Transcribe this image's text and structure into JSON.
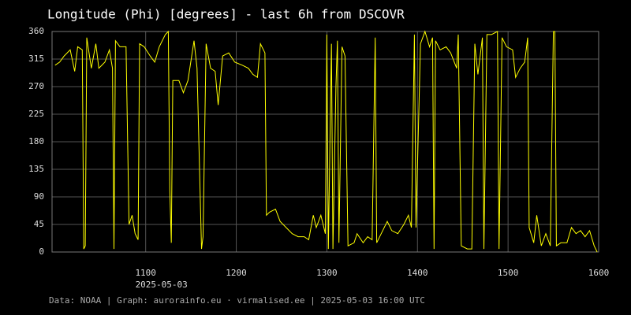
{
  "chart_data": {
    "type": "line",
    "title": "Longitude (Phi) [degrees] - last 6h from DSCOVR",
    "footer": "Data: NOAA | Graph: aurorainfo.eu · virmalised.ee | 2025-05-03 16:00 UTC",
    "x_date": "2025-05-03",
    "xlim": [
      "09:58",
      "16:00"
    ],
    "xticks": [
      {
        "value": "11:00",
        "label": "1100"
      },
      {
        "value": "12:00",
        "label": "1200"
      },
      {
        "value": "13:00",
        "label": "1300"
      },
      {
        "value": "14:00",
        "label": "1400"
      },
      {
        "value": "15:00",
        "label": "1500"
      },
      {
        "value": "16:00",
        "label": "1600"
      }
    ],
    "ylim": [
      0,
      360
    ],
    "yticks": [
      0,
      45,
      90,
      135,
      180,
      225,
      270,
      315,
      360
    ],
    "grid": true,
    "color": "#ffff00",
    "x": [
      "10:00",
      "10:03",
      "10:06",
      "10:10",
      "10:13",
      "10:15",
      "10:18",
      "10:19",
      "10:20",
      "10:21",
      "10:24",
      "10:27",
      "10:29",
      "10:33",
      "10:36",
      "10:38",
      "10:39",
      "10:40",
      "10:43",
      "10:47",
      "10:49",
      "10:51",
      "10:53",
      "10:55",
      "10:56",
      "10:59",
      "11:03",
      "11:06",
      "11:09",
      "11:13",
      "11:15",
      "11:16",
      "11:17",
      "11:18",
      "11:22",
      "11:25",
      "11:28",
      "11:32",
      "11:34",
      "11:37",
      "11:38",
      "11:40",
      "11:43",
      "11:46",
      "11:48",
      "11:51",
      "11:55",
      "11:59",
      "12:04",
      "12:08",
      "12:11",
      "12:14",
      "12:16",
      "12:19",
      "12:20",
      "12:22",
      "12:26",
      "12:29",
      "12:33",
      "12:37",
      "12:41",
      "12:45",
      "12:48",
      "12:51",
      "12:53",
      "12:56",
      "12:59",
      "13:00",
      "13:01",
      "13:03",
      "13:04",
      "13:06",
      "13:07",
      "13:08",
      "13:10",
      "13:12",
      "13:14",
      "13:18",
      "13:20",
      "13:24",
      "13:27",
      "13:30",
      "13:32",
      "13:33",
      "13:36",
      "13:40",
      "13:43",
      "13:47",
      "13:51",
      "13:54",
      "13:56",
      "13:58",
      "13:59",
      "14:02",
      "14:05",
      "14:08",
      "14:10",
      "14:11",
      "14:12",
      "14:15",
      "14:19",
      "14:22",
      "14:26",
      "14:27",
      "14:29",
      "14:33",
      "14:36",
      "14:38",
      "14:40",
      "14:43",
      "14:44",
      "14:46",
      "14:49",
      "14:53",
      "14:54",
      "14:56",
      "14:59",
      "15:03",
      "15:05",
      "15:08",
      "15:11",
      "15:13",
      "15:14",
      "15:17",
      "15:19",
      "15:22",
      "15:25",
      "15:28",
      "15:30",
      "15:31",
      "15:32",
      "15:35",
      "15:39",
      "15:42",
      "15:45",
      "15:48",
      "15:51",
      "15:54",
      "15:57",
      "15:59"
    ],
    "values": [
      305,
      310,
      320,
      330,
      295,
      335,
      330,
      5,
      10,
      350,
      300,
      340,
      300,
      310,
      330,
      300,
      5,
      345,
      335,
      335,
      45,
      60,
      30,
      20,
      340,
      335,
      320,
      310,
      335,
      355,
      360,
      100,
      15,
      280,
      280,
      260,
      280,
      345,
      300,
      5,
      25,
      340,
      300,
      295,
      240,
      320,
      325,
      310,
      305,
      300,
      290,
      285,
      340,
      325,
      60,
      65,
      70,
      50,
      40,
      30,
      25,
      25,
      20,
      60,
      40,
      60,
      30,
      355,
      5,
      340,
      5,
      270,
      345,
      15,
      335,
      320,
      10,
      15,
      30,
      15,
      25,
      20,
      350,
      15,
      30,
      50,
      35,
      30,
      45,
      60,
      40,
      355,
      40,
      340,
      360,
      335,
      350,
      5,
      345,
      330,
      335,
      325,
      300,
      355,
      10,
      5,
      5,
      340,
      290,
      350,
      5,
      355,
      355,
      360,
      5,
      350,
      335,
      330,
      285,
      300,
      310,
      350,
      40,
      15,
      60,
      10,
      30,
      10,
      360,
      360,
      10,
      15,
      15,
      40,
      30,
      35,
      25,
      35,
      10,
      0
    ]
  }
}
